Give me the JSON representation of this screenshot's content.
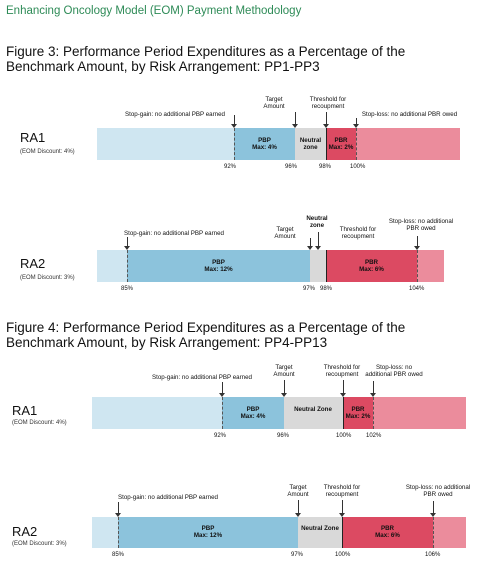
{
  "header": "Enhancing Oncology Model (EOM) Payment Methodology",
  "fig3": {
    "title": "Figure 3: Performance Period Expenditures as a Percentage of the Benchmark Amount, by Risk Arrangement: PP1-PP3",
    "ra1": {
      "name": "RA1",
      "discount": "(EOM Discount: 4%)",
      "pbp_label": "PBP",
      "pbp_max": "Max: 4%",
      "neutral_label": "Neutral zone",
      "pbr_label": "PBR",
      "pbr_max": "Max: 2%",
      "ticks": [
        "92%",
        "96%",
        "98%",
        "100%"
      ],
      "callouts": {
        "stop_gain": "Stop-gain: no additional PBP earned",
        "target": "Target Amount",
        "threshold": "Threshold for recoupment",
        "stop_loss": "Stop-loss: no additional PBR owed"
      }
    },
    "ra2": {
      "name": "RA2",
      "discount": "(EOM Discount: 3%)",
      "pbp_label": "PBP",
      "pbp_max": "Max: 12%",
      "neutral_label": "Neutral zone",
      "pbr_label": "PBR",
      "pbr_max": "Max: 6%",
      "ticks": [
        "85%",
        "97%",
        "98%",
        "104%"
      ],
      "callouts": {
        "stop_gain": "Stop-gain: no additional PBP earned",
        "target": "Target Amount",
        "threshold": "Threshold for recoupment",
        "stop_loss": "Stop-loss: no additional PBR owed"
      }
    }
  },
  "fig4": {
    "title": "Figure 4: Performance Period Expenditures as a Percentage of the Benchmark Amount, by Risk Arrangement: PP4-PP13",
    "ra1": {
      "name": "RA1",
      "discount": "(EOM Discount: 4%)",
      "pbp_label": "PBP",
      "pbp_max": "Max: 4%",
      "neutral_label": "Neutral Zone",
      "pbr_label": "PBR",
      "pbr_max": "Max: 2%",
      "ticks": [
        "92%",
        "96%",
        "100%",
        "102%"
      ],
      "callouts": {
        "stop_gain": "Stop-gain: no additional PBP earned",
        "target": "Target Amount",
        "threshold": "Threshold for recoupment",
        "stop_loss": "Stop-loss: no additional PBR owed"
      }
    },
    "ra2": {
      "name": "RA2",
      "discount": "(EOM Discount: 3%)",
      "pbp_label": "PBP",
      "pbp_max": "Max: 12%",
      "neutral_label": "Neutral Zone",
      "pbr_label": "PBR",
      "pbr_max": "Max: 6%",
      "ticks": [
        "85%",
        "97%",
        "100%",
        "106%"
      ],
      "callouts": {
        "stop_gain": "Stop-gain: no additional PBP earned",
        "target": "Target Amount",
        "threshold": "Threshold for recoupment",
        "stop_loss": "Stop-loss: no additional PBR owed"
      }
    }
  },
  "colors": {
    "light_blue": "#cfe6f1",
    "pbp_blue": "#8cc3dc",
    "neutral_gray": "#d9d9d9",
    "pbr_red": "#dc4a62",
    "light_red": "#eb8c9c",
    "header_green": "#2e8b57"
  }
}
